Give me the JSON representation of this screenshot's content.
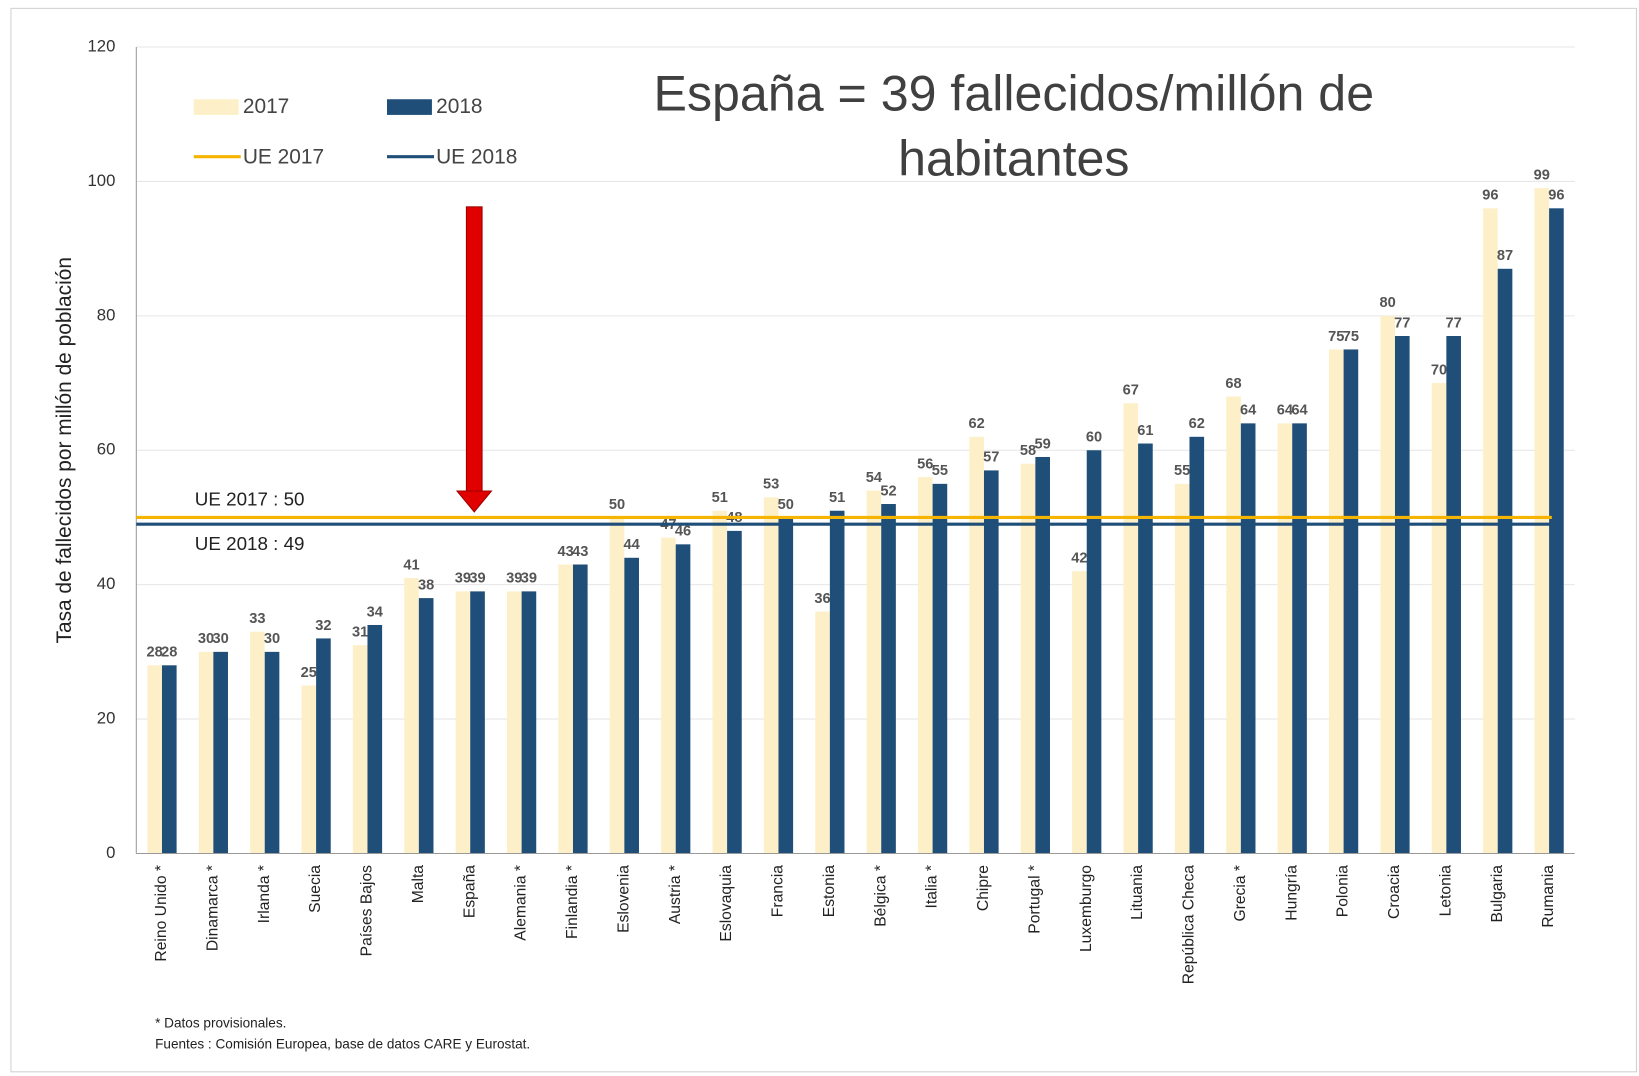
{
  "chart_data": {
    "type": "bar",
    "y_label": "Tasa de fallecidos por millón de población",
    "annotation": "España = 39 fallecidos/millón de habitantes",
    "footnotes": [
      "* Datos provisionales.",
      "Fuentes : Comisión Europea, base de datos CARE y Eurostat."
    ],
    "categories": [
      "Reino Unido *",
      "Dinamarca *",
      "Irlanda *",
      "Suecia",
      "Países Bajos",
      "Malta",
      "España",
      "Alemania *",
      "Finlandia *",
      "Eslovenia",
      "Austria *",
      "Eslovaquia",
      "Francia",
      "Estonia",
      "Bélgica *",
      "Italia *",
      "Chipre",
      "Portugal *",
      "Luxemburgo",
      "Lituania",
      "República Checa",
      "Grecia *",
      "Hungría",
      "Polonia",
      "Croacia",
      "Letonia",
      "Bulgaria",
      "Rumania"
    ],
    "series": [
      {
        "name": "2017",
        "color": "#fdf0c8",
        "values": [
          28,
          30,
          33,
          25,
          31,
          41,
          39,
          39,
          43,
          50,
          47,
          51,
          53,
          36,
          54,
          56,
          62,
          58,
          42,
          67,
          55,
          68,
          64,
          75,
          80,
          70,
          96,
          99
        ]
      },
      {
        "name": "2018",
        "color": "#1f4e79",
        "values": [
          28,
          30,
          30,
          32,
          34,
          38,
          39,
          39,
          43,
          44,
          46,
          48,
          50,
          51,
          52,
          55,
          57,
          59,
          60,
          61,
          62,
          64,
          64,
          75,
          77,
          77,
          87,
          96
        ]
      }
    ],
    "reference_lines": [
      {
        "name": "UE 2017",
        "value": 50,
        "label": "UE 2017 : 50",
        "color": "#f5b400"
      },
      {
        "name": "UE 2018",
        "value": 49,
        "label": "UE 2018 : 49",
        "color": "#1f4e79"
      }
    ],
    "ylim": [
      0,
      120
    ],
    "yticks": [
      0,
      20,
      40,
      60,
      80,
      100,
      120
    ],
    "grid": true
  }
}
